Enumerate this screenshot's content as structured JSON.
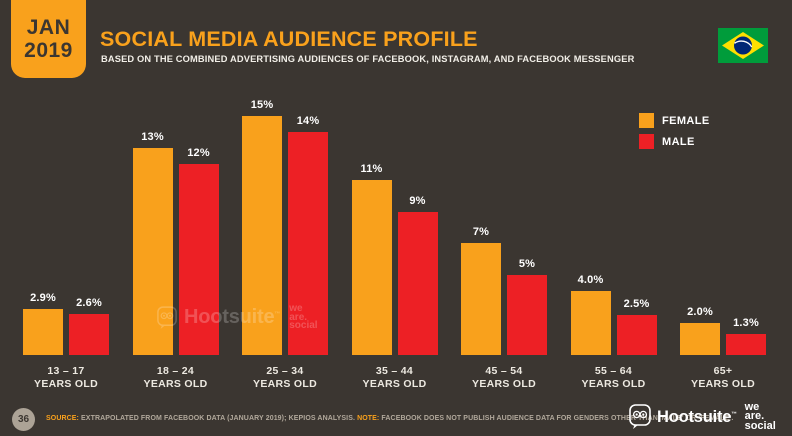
{
  "colors": {
    "background": "#3B3631",
    "orange": "#F9A11C",
    "red": "#ED2025",
    "dark_text": "#3B3631",
    "footer_text": "#B1A89B",
    "page_circle_bg": "#ACA396",
    "white": "#FFFFFF",
    "flag_green": "#009C3B",
    "flag_yellow": "#FEDF00",
    "flag_blue": "#002776"
  },
  "header": {
    "date_badge": {
      "line1": "JAN",
      "line2": "2019"
    },
    "title": "SOCIAL MEDIA AUDIENCE PROFILE",
    "subtitle": "BASED ON THE COMBINED ADVERTISING AUDIENCES OF FACEBOOK, INSTAGRAM, AND FACEBOOK MESSENGER",
    "flag_icon": "brazil-flag"
  },
  "chart_data": {
    "type": "bar",
    "title": "SOCIAL MEDIA AUDIENCE PROFILE",
    "categories": [
      "13 – 17",
      "18 – 24",
      "25 – 34",
      "35 – 44",
      "45 – 54",
      "55 – 64",
      "65+"
    ],
    "category_suffix": "YEARS OLD",
    "series": [
      {
        "name": "FEMALE",
        "color": "#F9A11C",
        "values": [
          2.9,
          13,
          15,
          11,
          7,
          4.0,
          2.0
        ],
        "labels": [
          "2.9%",
          "13%",
          "15%",
          "11%",
          "7%",
          "4.0%",
          "2.0%"
        ]
      },
      {
        "name": "MALE",
        "color": "#ED2025",
        "values": [
          2.6,
          12,
          14,
          9,
          5,
          2.5,
          1.3
        ],
        "labels": [
          "2.6%",
          "12%",
          "14%",
          "9%",
          "5%",
          "2.5%",
          "1.3%"
        ]
      }
    ],
    "unit": "%",
    "ylim": [
      0,
      16
    ],
    "grid": false,
    "legend_position": "top-right"
  },
  "watermark": {
    "owl_icon": "hootsuite-owl-icon",
    "hootsuite": "Hootsuite",
    "tm": "™",
    "wearesocial_lines": [
      "we",
      "are.",
      "social"
    ]
  },
  "footer": {
    "page_number": "36",
    "source_label": "SOURCE:",
    "source_text": " EXTRAPOLATED FROM FACEBOOK DATA (JANUARY 2019); KEPIOS ANALYSIS. ",
    "note_label": "NOTE:",
    "note_text": " FACEBOOK DOES NOT PUBLISH AUDIENCE DATA FOR GENDERS OTHER THAN 'MALE' OR 'FEMALE'.",
    "hootsuite_owl_icon": "hootsuite-owl-icon",
    "hootsuite": "Hootsuite",
    "tm": "™",
    "wearesocial_lines": [
      "we",
      "are.",
      "social"
    ]
  }
}
